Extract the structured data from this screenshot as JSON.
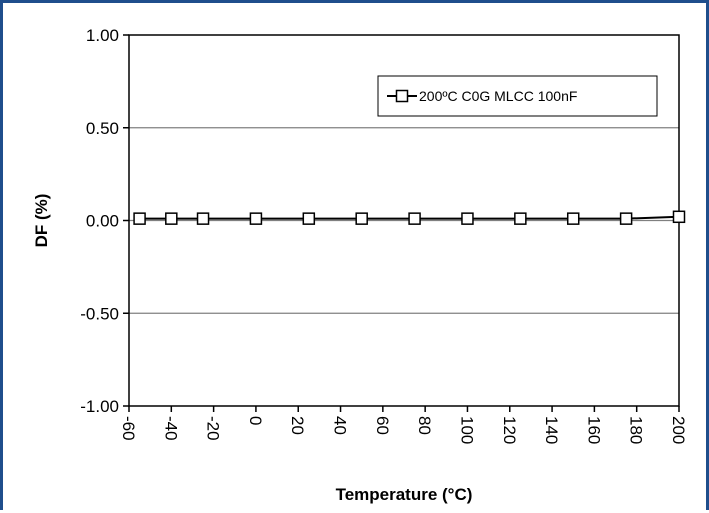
{
  "chart_data": {
    "type": "line",
    "title": "",
    "xlabel": "Temperature (°C)",
    "ylabel": "DF (%)",
    "xlim": [
      -60,
      200
    ],
    "ylim": [
      -1.0,
      1.0
    ],
    "x_ticks": [
      "-60",
      "-40",
      "-20",
      "0",
      "20",
      "40",
      "60",
      "80",
      "100",
      "120",
      "140",
      "160",
      "180",
      "200"
    ],
    "y_ticks": [
      "1.00",
      "0.50",
      "0.00",
      "-0.50",
      "-1.00"
    ],
    "grid": "horizontal",
    "legend_position": "top-right",
    "series": [
      {
        "name": "200ºC C0G MLCC 100nF",
        "marker": "open-square",
        "color": "#000000",
        "x": [
          -55,
          -40,
          -25,
          0,
          25,
          50,
          75,
          100,
          125,
          150,
          175,
          200
        ],
        "y": [
          0.01,
          0.01,
          0.01,
          0.01,
          0.01,
          0.01,
          0.01,
          0.01,
          0.01,
          0.01,
          0.01,
          0.02
        ]
      }
    ]
  }
}
